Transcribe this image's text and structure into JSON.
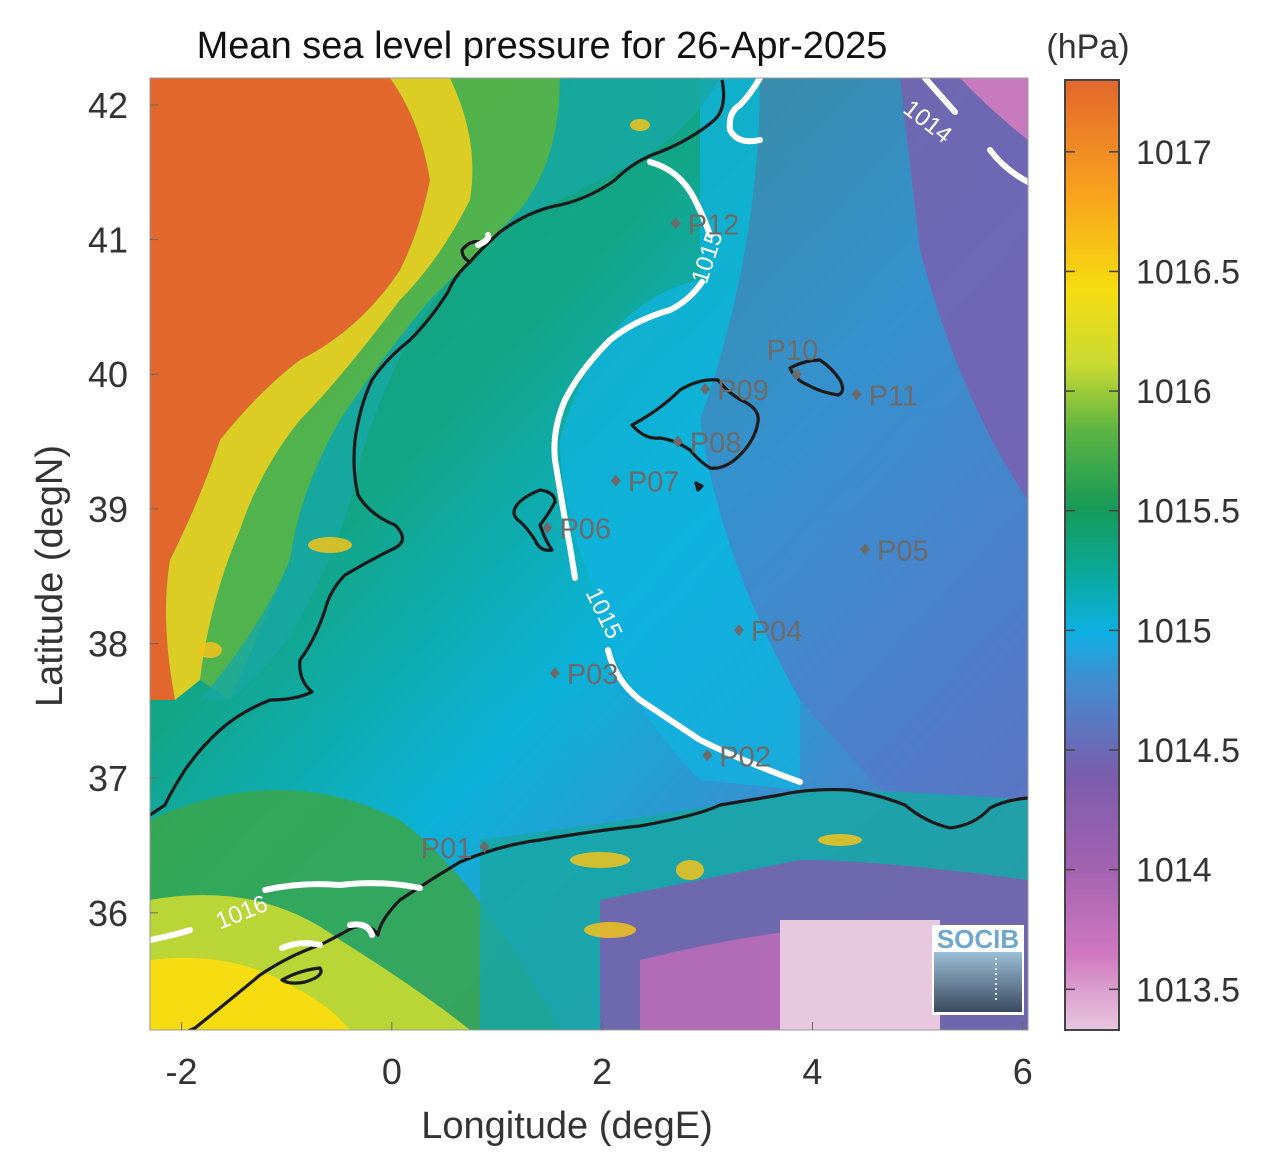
{
  "title": "Mean sea level pressure for 26-Apr-2025",
  "xlabel": "Longitude (degE)",
  "ylabel": "Latitude (degN)",
  "colorbar": {
    "unit": "(hPa)",
    "range": [
      1013.33,
      1017.3
    ],
    "ticks": [
      "1017",
      "1016.5",
      "1016",
      "1015.5",
      "1015",
      "1014.5",
      "1014",
      "1013.5"
    ],
    "tick_values": [
      1017,
      1016.5,
      1016,
      1015.5,
      1015,
      1014.5,
      1014,
      1013.5
    ],
    "colors": [
      "#e8c8df",
      "#cf78bf",
      "#a262b0",
      "#7a5eae",
      "#3f8fd1",
      "#0db0e2",
      "#0aaa9c",
      "#179a58",
      "#5bb442",
      "#c8da32",
      "#f6dc10",
      "#f8a21d",
      "#e2672c"
    ]
  },
  "logo": {
    "text": "SOCIB"
  },
  "chart_data": {
    "type": "heatmap",
    "title": "Mean sea level pressure for 26-Apr-2025",
    "xlabel": "Longitude (degE)",
    "ylabel": "Latitude (degN)",
    "xlim": [
      -2.3,
      6.05
    ],
    "ylim": [
      35.13,
      42.2
    ],
    "xticks": [
      "-2",
      "0",
      "2",
      "4",
      "6"
    ],
    "xtick_values": [
      -2,
      0,
      2,
      4,
      6
    ],
    "yticks": [
      "42",
      "41",
      "40",
      "39",
      "38",
      "37",
      "36"
    ],
    "ytick_values": [
      42,
      41,
      40,
      39,
      38,
      37,
      36
    ],
    "contour_labels": [
      {
        "text": "1014",
        "lon": 5.05,
        "lat": 41.83,
        "angle": 38
      },
      {
        "text": "1015",
        "lon": 3.07,
        "lat": 40.85,
        "angle": -72
      },
      {
        "text": "1015",
        "lon": 1.95,
        "lat": 38.2,
        "angle": 64
      },
      {
        "text": "1016",
        "lon": -1.4,
        "lat": 35.95,
        "angle": -22
      }
    ],
    "stations": [
      {
        "name": "P01",
        "lon": 0.88,
        "lat": 36.49,
        "label_side": "left"
      },
      {
        "name": "P02",
        "lon": 3.0,
        "lat": 37.17,
        "label_side": "right"
      },
      {
        "name": "P03",
        "lon": 1.55,
        "lat": 37.78,
        "label_side": "right"
      },
      {
        "name": "P04",
        "lon": 3.3,
        "lat": 38.1,
        "label_side": "right"
      },
      {
        "name": "P05",
        "lon": 4.5,
        "lat": 38.7,
        "label_side": "right"
      },
      {
        "name": "P06",
        "lon": 1.48,
        "lat": 38.86,
        "label_side": "right"
      },
      {
        "name": "P07",
        "lon": 2.13,
        "lat": 39.21,
        "label_side": "right"
      },
      {
        "name": "P08",
        "lon": 2.72,
        "lat": 39.5,
        "label_side": "right"
      },
      {
        "name": "P09",
        "lon": 2.98,
        "lat": 39.89,
        "label_side": "right"
      },
      {
        "name": "P10",
        "lon": 3.85,
        "lat": 40.0,
        "label_side": "above"
      },
      {
        "name": "P11",
        "lon": 4.42,
        "lat": 39.85,
        "label_side": "right"
      },
      {
        "name": "P12",
        "lon": 2.7,
        "lat": 41.12,
        "label_side": "right"
      }
    ]
  }
}
